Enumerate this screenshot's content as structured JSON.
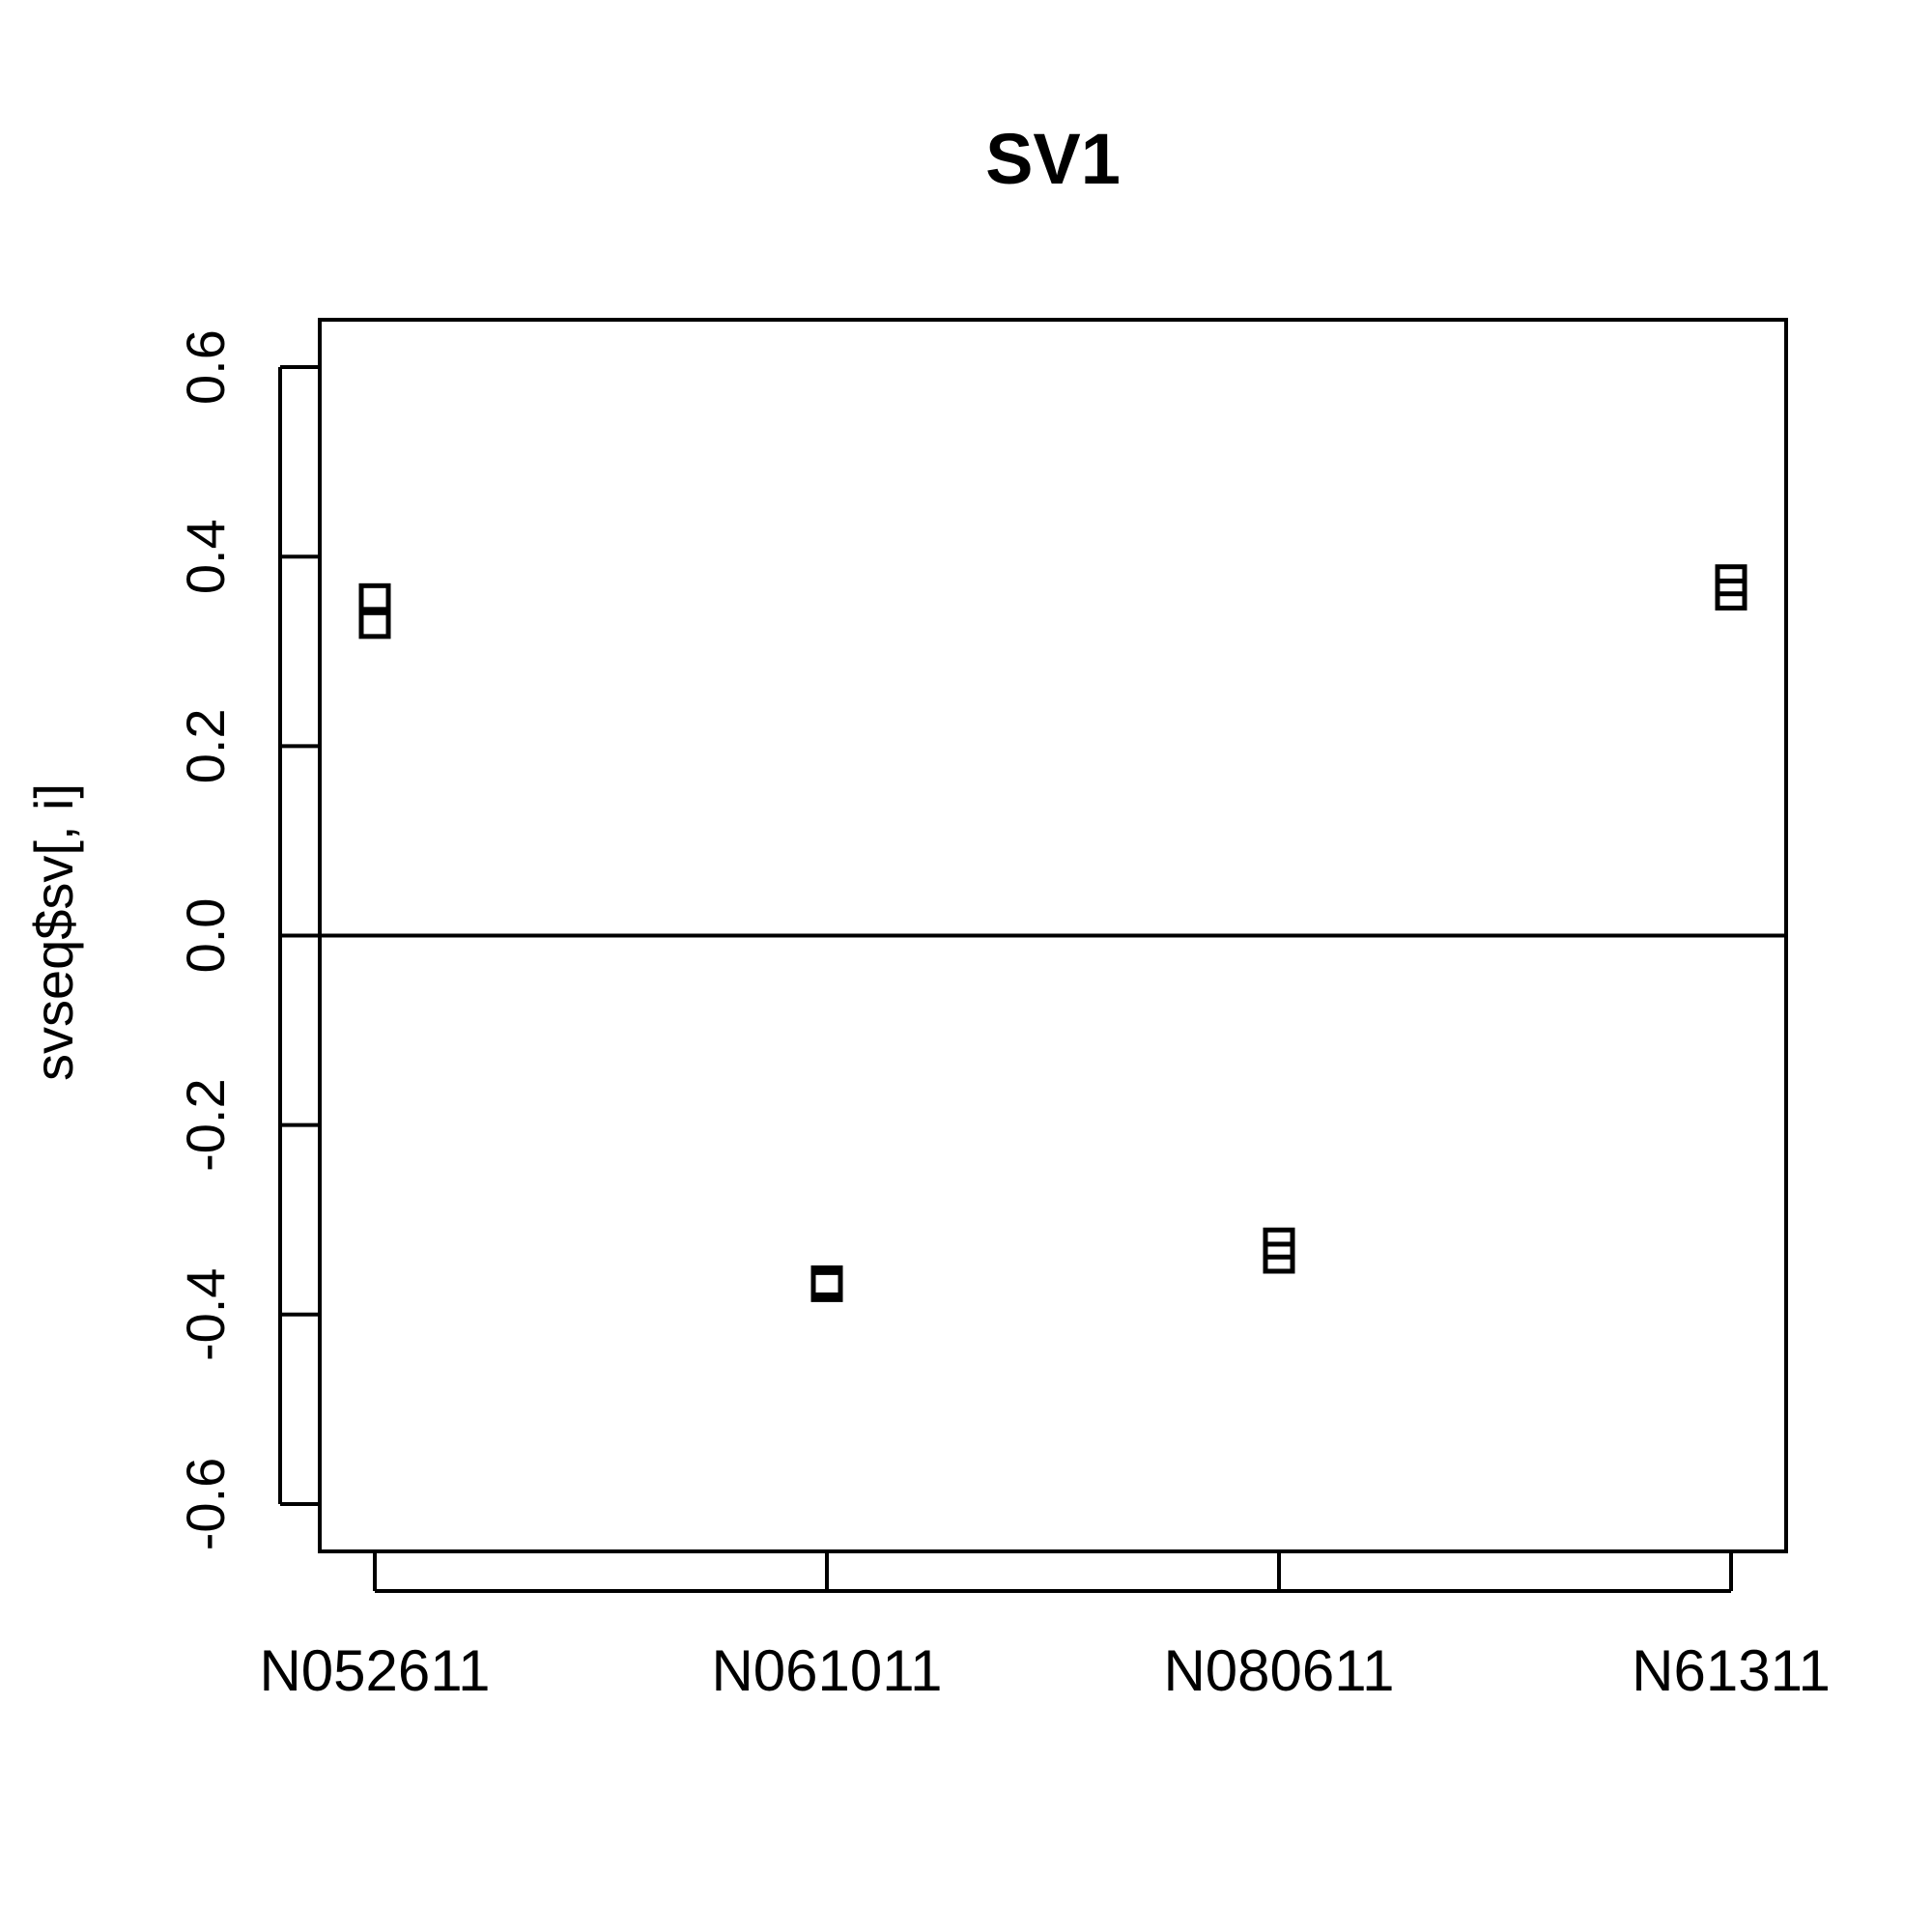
{
  "chart_data": {
    "type": "scatter",
    "title": "SV1",
    "xlabel": "",
    "ylabel": "svseq$sv[, i]",
    "categories": [
      "N052611",
      "N061011",
      "N080611",
      "N61311"
    ],
    "ylim": [
      -0.65,
      0.65
    ],
    "yticks": [
      "-0.6",
      "-0.4",
      "-0.2",
      "0.0",
      "0.2",
      "0.4",
      "0.6"
    ],
    "yticks_values": [
      -0.6,
      -0.4,
      -0.2,
      0.0,
      0.2,
      0.4,
      0.6
    ],
    "reference_line_y": 0.0,
    "marker": "open-square",
    "grid": false,
    "series": [
      {
        "points": [
          {
            "category": "N052611",
            "y": 0.355
          },
          {
            "category": "N052611",
            "y": 0.33
          },
          {
            "category": "N061011",
            "y": -0.365
          },
          {
            "category": "N061011",
            "y": -0.37
          },
          {
            "category": "N080611",
            "y": -0.325
          },
          {
            "category": "N080611",
            "y": -0.34
          },
          {
            "category": "N61311",
            "y": 0.375
          },
          {
            "category": "N61311",
            "y": 0.36
          }
        ]
      }
    ]
  }
}
